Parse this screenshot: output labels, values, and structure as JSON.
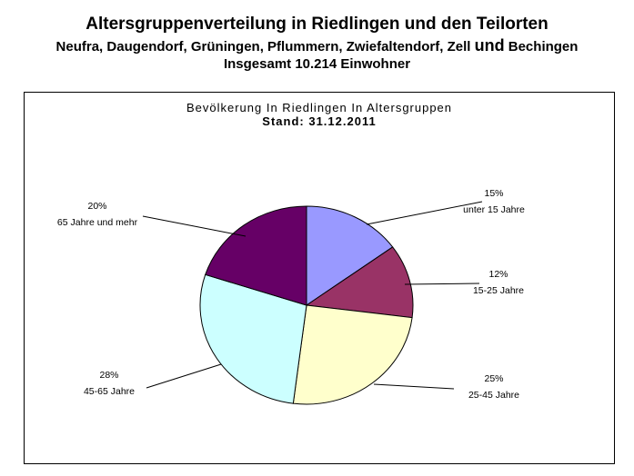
{
  "header": {
    "title": "Altersgruppenverteilung in Riedlingen und den Teilorten",
    "subtitle_part1": "Neufra, Daugendorf, Grüningen, Pflummern, Zwiefaltendorf, Zell ",
    "subtitle_und": "und",
    "subtitle_part2": " Bechingen",
    "total": "Insgesamt  10.214 Einwohner"
  },
  "chart_data": {
    "type": "pie",
    "title": "Bevölkerung In Riedlingen In Altersgruppen",
    "subtitle": "Stand: 31.12.2011",
    "start": "12 o'clock",
    "direction": "clockwise",
    "slices": [
      {
        "label": "unter 15 Jahre",
        "percent_label": "15%",
        "value": 15,
        "color": "#9999FF"
      },
      {
        "label": "15-25 Jahre",
        "percent_label": "12%",
        "value": 12,
        "color": "#993366"
      },
      {
        "label": "25-45 Jahre",
        "percent_label": "25%",
        "value": 25,
        "color": "#FFFFCC"
      },
      {
        "label": "45-65 Jahre",
        "percent_label": "28%",
        "value": 28,
        "color": "#CCFFFF"
      },
      {
        "label": "65 Jahre und mehr",
        "percent_label": "20%",
        "value": 20,
        "color": "#660066"
      }
    ]
  }
}
